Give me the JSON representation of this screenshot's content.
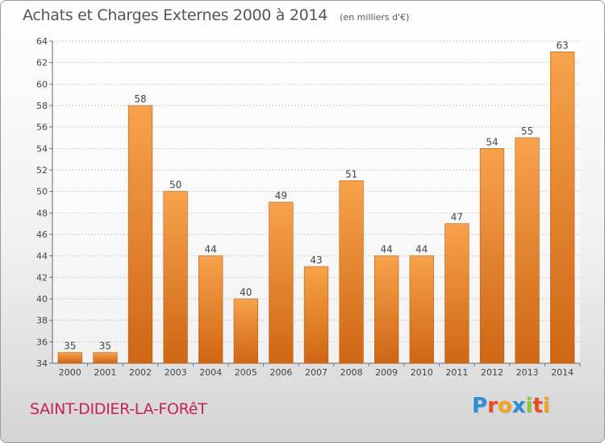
{
  "header": {
    "title": "Achats et Charges Externes 2000 à 2014",
    "unit": "(en milliers d'€)"
  },
  "footer": {
    "town": "SAINT-DIDIER-LA-FORêT",
    "brand": "Proxiti"
  },
  "brand_letters": [
    {
      "char": "P",
      "color": "#2a8fd8"
    },
    {
      "char": "r",
      "color": "#e84b23"
    },
    {
      "char": "o",
      "color": "#f2a21c"
    },
    {
      "char": "x",
      "color": "#2a8fd8"
    },
    {
      "char": "i",
      "color": "#8cc63f"
    },
    {
      "char": "t",
      "color": "#e84b23"
    },
    {
      "char": "i",
      "color": "#f2a21c"
    }
  ],
  "chart_data": {
    "type": "bar",
    "title": "Achats et Charges Externes 2000 à 2014",
    "subtitle": "(en milliers d'€)",
    "categories": [
      "2000",
      "2001",
      "2002",
      "2003",
      "2004",
      "2005",
      "2006",
      "2007",
      "2008",
      "2009",
      "2010",
      "2011",
      "2012",
      "2013",
      "2014"
    ],
    "values": [
      35,
      35,
      58,
      50,
      44,
      40,
      49,
      43,
      51,
      44,
      44,
      47,
      54,
      55,
      63
    ],
    "ylim": [
      34,
      64
    ],
    "yticks": [
      34,
      36,
      38,
      40,
      42,
      44,
      46,
      48,
      50,
      52,
      54,
      56,
      58,
      60,
      62,
      64
    ],
    "grid": true,
    "legend": "none",
    "bar_color_top": "#f7a24c",
    "bar_color_bottom": "#cf6614"
  }
}
